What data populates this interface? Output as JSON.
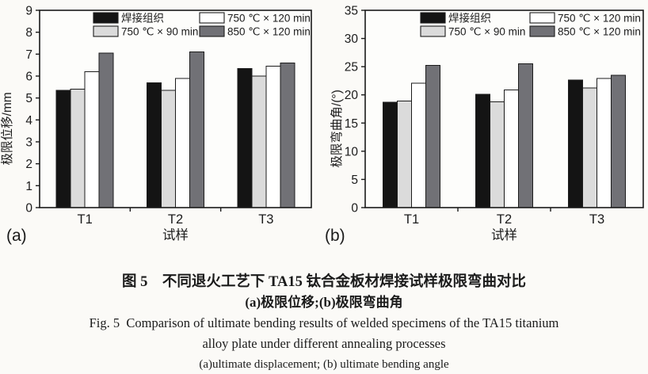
{
  "figure": {
    "panel_a_label": "(a)",
    "panel_b_label": "(b)"
  },
  "chart_data": [
    {
      "id": "a",
      "type": "bar",
      "panel_label": "(a)",
      "categories": [
        "T1",
        "T2",
        "T3"
      ],
      "series": [
        {
          "name": "焊接组织",
          "color": "#141414",
          "values": [
            5.35,
            5.7,
            6.35
          ]
        },
        {
          "name": "750 ℃ × 90 min",
          "color": "#dbdbdb",
          "values": [
            5.4,
            5.35,
            6.0
          ]
        },
        {
          "name": "750 ℃ × 120 min",
          "color": "#ffffff",
          "values": [
            6.2,
            5.9,
            6.45
          ]
        },
        {
          "name": "850 ℃ × 120 min",
          "color": "#717176",
          "values": [
            7.05,
            7.1,
            6.6
          ]
        }
      ],
      "xlabel": "试样",
      "ylabel": "极限位移/mm",
      "ylim": [
        0,
        9
      ],
      "ytick_step": 1,
      "grid": false,
      "legend_position": "top-inside"
    },
    {
      "id": "b",
      "type": "bar",
      "panel_label": "(b)",
      "categories": [
        "T1",
        "T2",
        "T3"
      ],
      "series": [
        {
          "name": "焊接组织",
          "color": "#141414",
          "values": [
            18.7,
            20.1,
            22.6
          ]
        },
        {
          "name": "750 ℃ × 90 min",
          "color": "#dbdbdb",
          "values": [
            18.9,
            18.8,
            21.2
          ]
        },
        {
          "name": "750 ℃ × 120 min",
          "color": "#ffffff",
          "values": [
            22.1,
            20.9,
            22.9
          ]
        },
        {
          "name": "850 ℃ × 120 min",
          "color": "#717176",
          "values": [
            25.2,
            25.5,
            23.5
          ]
        }
      ],
      "xlabel": "试样",
      "ylabel": "极限弯曲角/(°)",
      "ylim": [
        0,
        35
      ],
      "ytick_step": 5,
      "grid": false,
      "legend_position": "top-inside"
    }
  ],
  "caption": {
    "zh_title": "图 5　不同退火工艺下 TA15 钛合金板材焊接试样极限弯曲对比",
    "zh_subtitle": "(a)极限位移;(b)极限弯曲角",
    "en_title_line1": "Fig. 5  Comparison of ultimate bending results of welded specimens of the TA15 titanium",
    "en_title_line2": "alloy plate under different annealing processes",
    "en_subtitle": "(a)ultimate displacement; (b) ultimate bending angle"
  }
}
